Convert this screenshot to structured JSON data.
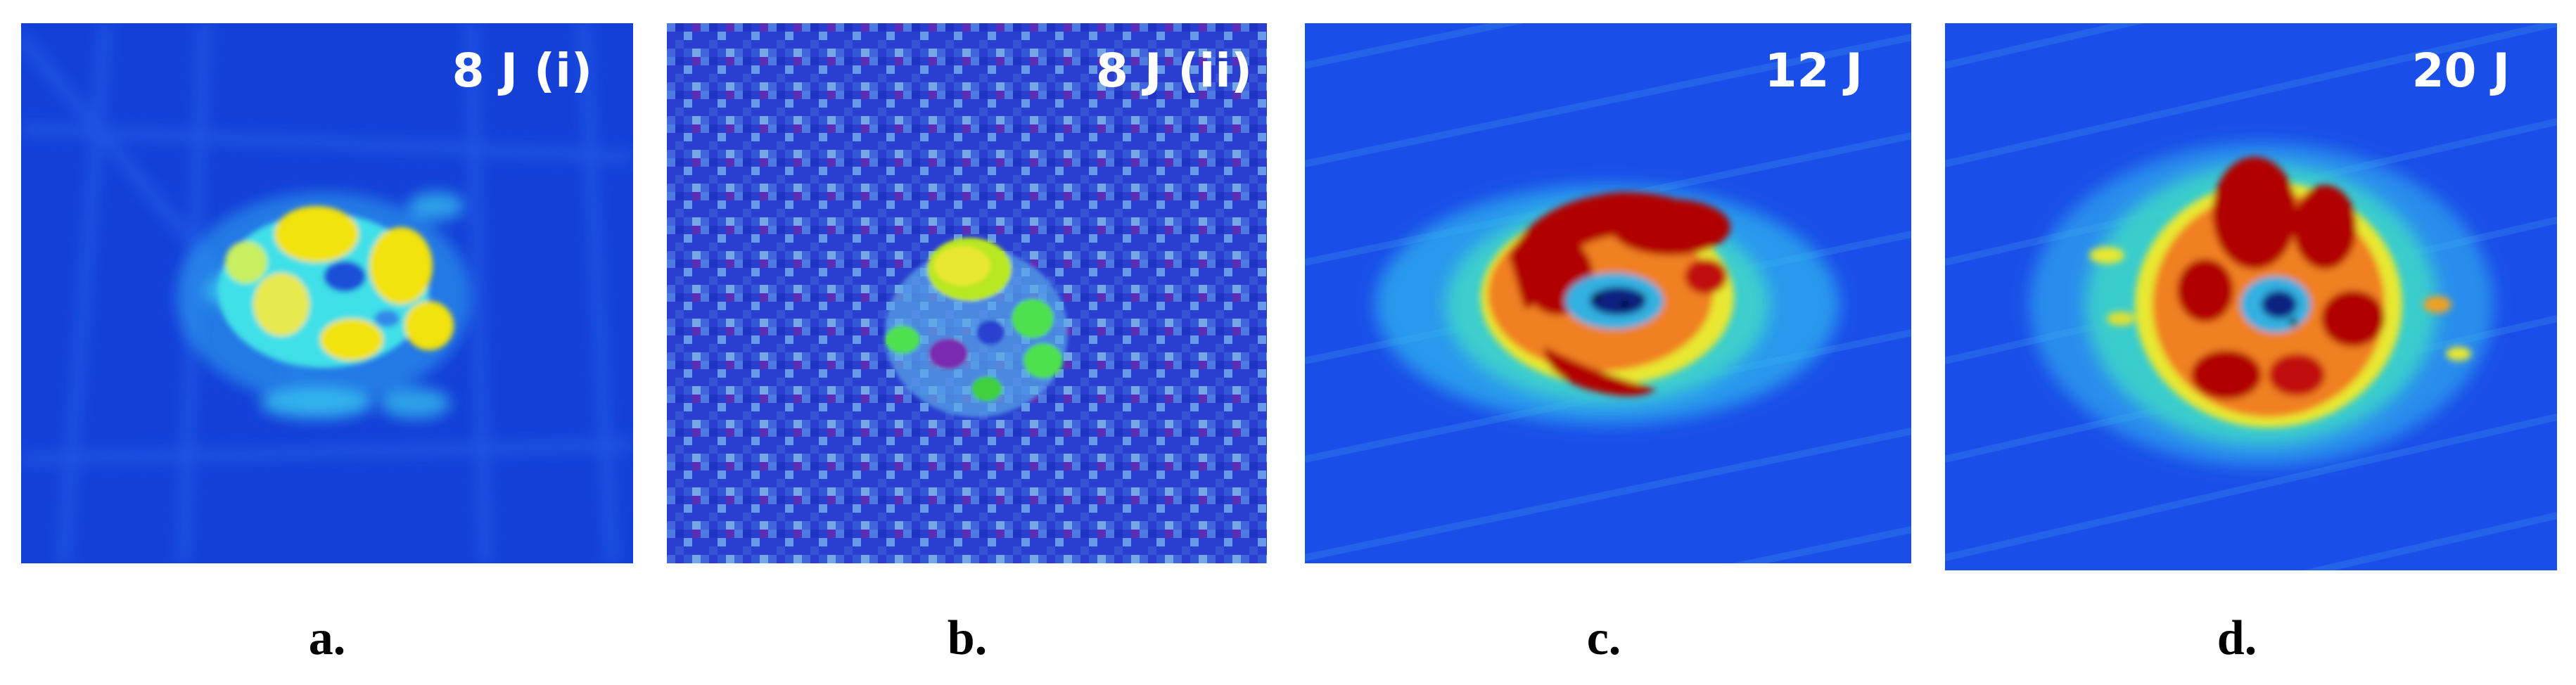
{
  "panels": [
    {
      "id": "a",
      "energy_label": "8 J (i)",
      "caption": "a.",
      "colors": {
        "background": "#1440d8",
        "hot": "#f2e20a"
      }
    },
    {
      "id": "b",
      "energy_label": "8 J (ii)",
      "caption": "b.",
      "colors": {
        "background": "#2a3fd0",
        "hot": "#7ee81a"
      }
    },
    {
      "id": "c",
      "energy_label": "12 J",
      "caption": "c.",
      "colors": {
        "background": "#1a4ee8",
        "hot": "#b00000"
      }
    },
    {
      "id": "d",
      "energy_label": "20 J",
      "caption": "d.",
      "colors": {
        "background": "#1a4ee8",
        "hot": "#b00000"
      }
    }
  ]
}
